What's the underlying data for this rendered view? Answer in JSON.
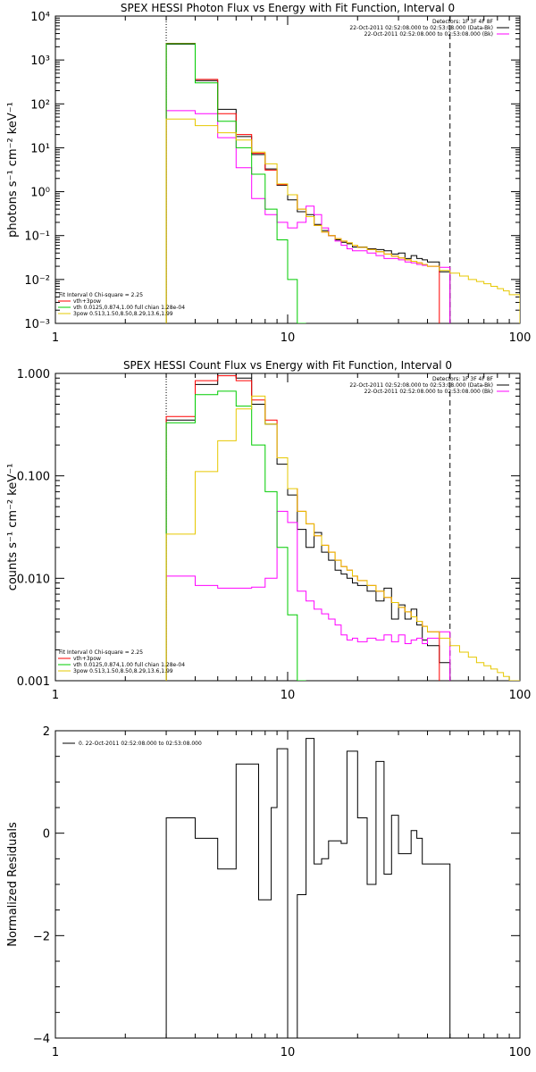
{
  "chart_data": [
    {
      "type": "line",
      "title": "SPEX HESSI Photon Flux vs Energy with Fit Function, Interval 0",
      "ylabel": "photons s⁻¹ cm⁻² keV⁻¹",
      "xscale": "log",
      "yscale": "log",
      "xlim": [
        1,
        100
      ],
      "ylim": [
        0.001,
        10000
      ],
      "x_ticks": [
        "1",
        "10",
        "100"
      ],
      "y_ticks": [
        "10⁻³",
        "10⁻²",
        "10⁻¹",
        "10⁰",
        "10¹",
        "10²",
        "10³",
        "10⁴"
      ],
      "y_tick_values": [
        0.001,
        0.01,
        0.1,
        1,
        10,
        100,
        1000,
        10000
      ],
      "fit_range": [
        3,
        50
      ],
      "legend_top_right": [
        "Detectors: 1F 3F 4F 8F",
        "22-Oct-2011 02:52:08.000 to 02:53:08.000 (Data-Bk)",
        "22-Oct-2011 02:52:08.000 to 02:53:08.000 (Bk)"
      ],
      "legend_bottom_left": [
        "Fit Interval 0   Chi-square = 2.25",
        "vth+3pow",
        "vth 0.0125,0.874,1.00  full chian 1.28e-04",
        "3pow 0.513,1.50,8.50,8.29,13.6,1.99"
      ],
      "bin_edges": [
        3,
        4,
        5,
        6,
        7,
        8,
        9,
        10,
        11,
        12,
        13,
        14,
        15,
        16,
        17,
        18,
        19,
        20,
        22,
        24,
        26,
        28,
        30,
        32,
        34,
        36,
        38,
        40,
        45,
        50,
        55,
        60,
        65,
        70,
        75,
        80,
        85,
        90,
        100
      ],
      "series": [
        {
          "name": "Data-Bk",
          "color": "#000000",
          "values": [
            2300,
            340,
            75,
            18,
            7,
            3.3,
            1.4,
            0.65,
            0.35,
            0.3,
            0.18,
            0.13,
            0.1,
            0.08,
            0.07,
            0.065,
            0.055,
            0.055,
            0.05,
            0.048,
            0.045,
            0.038,
            0.04,
            0.03,
            0.035,
            0.03,
            0.028,
            0.025,
            0.015,
            null,
            null,
            null,
            null,
            null,
            null,
            null,
            null,
            null
          ]
        },
        {
          "name": "Bk",
          "color": "#ff00ff",
          "values": [
            70,
            60,
            17,
            3.5,
            0.7,
            0.3,
            0.2,
            0.15,
            0.2,
            0.47,
            0.3,
            0.15,
            0.1,
            0.075,
            0.06,
            0.05,
            0.045,
            0.045,
            0.04,
            0.035,
            0.03,
            0.03,
            0.028,
            0.025,
            0.024,
            0.022,
            0.021,
            0.02,
            0.019,
            null,
            null,
            null,
            null,
            null,
            null,
            null,
            null,
            null
          ]
        },
        {
          "name": "vth+3pow",
          "color": "#ff0000",
          "values": [
            2400,
            360,
            60,
            20,
            7.5,
            3.1,
            1.45,
            0.85,
            0.4,
            0.27,
            0.17,
            0.12,
            0.1,
            0.085,
            0.075,
            0.068,
            0.06,
            0.054,
            0.048,
            0.043,
            0.038,
            0.034,
            0.031,
            0.028,
            0.026,
            0.024,
            0.022,
            0.02,
            null,
            null,
            null,
            null,
            null,
            null,
            null,
            null,
            null,
            null
          ]
        },
        {
          "name": "vth",
          "color": "#00cc00",
          "values": [
            2350,
            300,
            40,
            10,
            2.5,
            0.4,
            0.08,
            0.01,
            0.001,
            null,
            null,
            null,
            null,
            null,
            null,
            null,
            null,
            null,
            null,
            null,
            null,
            null,
            null,
            null,
            null,
            null,
            null,
            null,
            null,
            null,
            null,
            null,
            null,
            null,
            null,
            null,
            null,
            null
          ]
        },
        {
          "name": "3pow",
          "color": "#e6c800",
          "values": [
            45,
            32,
            22,
            15,
            8,
            4.3,
            1.5,
            0.85,
            0.4,
            0.27,
            0.17,
            0.12,
            0.1,
            0.085,
            0.075,
            0.068,
            0.06,
            0.054,
            0.048,
            0.043,
            0.038,
            0.034,
            0.031,
            0.028,
            0.026,
            0.024,
            0.022,
            0.02,
            0.016,
            0.014,
            0.012,
            0.01,
            0.009,
            0.008,
            0.007,
            0.0062,
            0.0055,
            0.0045
          ]
        }
      ]
    },
    {
      "type": "line",
      "title": "SPEX HESSI Count Flux vs Energy with Fit Function, Interval 0",
      "ylabel": "counts s⁻¹ cm⁻² keV⁻¹",
      "xscale": "log",
      "yscale": "log",
      "xlim": [
        1,
        100
      ],
      "ylim": [
        0.001,
        1.0
      ],
      "x_ticks": [
        "1",
        "10",
        "100"
      ],
      "y_ticks": [
        "0.001",
        "0.010",
        "0.100",
        "1.000"
      ],
      "y_tick_values": [
        0.001,
        0.01,
        0.1,
        1.0
      ],
      "fit_range": [
        3,
        50
      ],
      "legend_top_right": [
        "Detectors: 1F 3F 4F 8F",
        "22-Oct-2011 02:52:08.000 to 02:53:08.000 (Data-Bk)",
        "22-Oct-2011 02:52:08.000 to 02:53:08.000 (Bk)"
      ],
      "legend_bottom_left": [
        "Fit Interval 0   Chi-square = 2.25",
        "vth+3pow",
        "vth 0.0125,0.874,1.00  full chian 1.28e-04",
        "3pow 0.513,1.50,8.50,8.29,13.6,1.99"
      ],
      "bin_edges": [
        3,
        4,
        5,
        6,
        7,
        8,
        9,
        10,
        11,
        12,
        13,
        14,
        15,
        16,
        17,
        18,
        19,
        20,
        22,
        24,
        26,
        28,
        30,
        32,
        34,
        36,
        38,
        40,
        45,
        50,
        55,
        60,
        65,
        70,
        75,
        80,
        85,
        90,
        100
      ],
      "series": [
        {
          "name": "Data-Bk",
          "color": "#000000",
          "values": [
            0.35,
            0.78,
            1.0,
            0.9,
            0.5,
            0.32,
            0.13,
            0.065,
            0.03,
            0.02,
            0.028,
            0.018,
            0.015,
            0.012,
            0.011,
            0.01,
            0.009,
            0.0085,
            0.0075,
            0.006,
            0.008,
            0.004,
            0.0055,
            0.004,
            0.005,
            0.0035,
            0.0025,
            0.0022,
            0.0015,
            null,
            null,
            null,
            null,
            null,
            null,
            null,
            null,
            null
          ]
        },
        {
          "name": "Bk",
          "color": "#ff00ff",
          "values": [
            0.0105,
            0.0085,
            0.008,
            0.008,
            0.0082,
            0.01,
            0.045,
            0.035,
            0.0075,
            0.006,
            0.005,
            0.0045,
            0.004,
            0.0035,
            0.0028,
            0.0025,
            0.0026,
            0.0024,
            0.0026,
            0.0025,
            0.0028,
            0.0024,
            0.0028,
            0.0023,
            0.0025,
            0.0026,
            0.0023,
            0.0026,
            0.003,
            null,
            null,
            null,
            null,
            null,
            null,
            null,
            null,
            null
          ]
        },
        {
          "name": "vth+3pow",
          "color": "#ff0000",
          "values": [
            0.38,
            0.85,
            0.95,
            0.85,
            0.55,
            0.35,
            0.15,
            0.075,
            0.045,
            0.034,
            0.026,
            0.021,
            0.018,
            0.015,
            0.013,
            0.012,
            0.0105,
            0.0095,
            0.0085,
            0.0075,
            0.0065,
            0.0058,
            0.0052,
            0.0047,
            0.0042,
            0.0038,
            0.0034,
            0.003,
            null,
            null,
            null,
            null,
            null,
            null,
            null,
            null,
            null,
            null
          ]
        },
        {
          "name": "vth",
          "color": "#00cc00",
          "values": [
            0.33,
            0.62,
            0.67,
            0.48,
            0.2,
            0.07,
            0.02,
            0.0044,
            0.001,
            null,
            null,
            null,
            null,
            null,
            null,
            null,
            null,
            null,
            null,
            null,
            null,
            null,
            null,
            null,
            null,
            null,
            null,
            null,
            null,
            null,
            null,
            null,
            null,
            null,
            null,
            null,
            null,
            null
          ]
        },
        {
          "name": "3pow",
          "color": "#e6c800",
          "values": [
            0.027,
            0.11,
            0.22,
            0.45,
            0.6,
            0.32,
            0.15,
            0.075,
            0.045,
            0.034,
            0.026,
            0.021,
            0.018,
            0.015,
            0.013,
            0.012,
            0.0105,
            0.0095,
            0.0085,
            0.0075,
            0.0065,
            0.0058,
            0.0052,
            0.0047,
            0.0042,
            0.0038,
            0.0034,
            0.003,
            0.0026,
            0.0022,
            0.0019,
            0.0017,
            0.0015,
            0.0014,
            0.0013,
            0.0012,
            0.0011,
            0.001
          ]
        }
      ]
    },
    {
      "type": "line",
      "title": "",
      "ylabel": "Normalized Residuals",
      "xscale": "log",
      "yscale": "linear",
      "xlim": [
        1,
        100
      ],
      "ylim": [
        -4,
        2
      ],
      "x_ticks": [
        "1",
        "10",
        "100"
      ],
      "y_ticks": [
        "−4",
        "−2",
        "0",
        "2"
      ],
      "y_tick_values": [
        -4,
        -2,
        0,
        2
      ],
      "legend": "0. 22-Oct-2011 02:52:08.000 to 02:53:08.000",
      "bin_edges": [
        3,
        4,
        5,
        6,
        7,
        7.5,
        8,
        8.5,
        9,
        9.5,
        10,
        11,
        12,
        13,
        14,
        15,
        16,
        17,
        18,
        19,
        20,
        22,
        24,
        26,
        28,
        30,
        32,
        34,
        36,
        38,
        40,
        45,
        50
      ],
      "series": [
        {
          "name": "0. 22-Oct-2011 02:52:08.000 to 02:53:08.000",
          "color": "#000000",
          "values": [
            0.3,
            -0.1,
            -0.7,
            1.35,
            1.35,
            -1.3,
            -1.3,
            0.5,
            1.65,
            1.65,
            -4,
            -1.2,
            1.85,
            -0.6,
            -0.5,
            -0.15,
            -0.15,
            -0.2,
            1.6,
            1.6,
            0.3,
            -1.0,
            1.4,
            -0.8,
            0.35,
            -0.4,
            -0.4,
            0.05,
            -0.1,
            -0.6,
            -0.6,
            -0.6
          ]
        }
      ]
    }
  ]
}
